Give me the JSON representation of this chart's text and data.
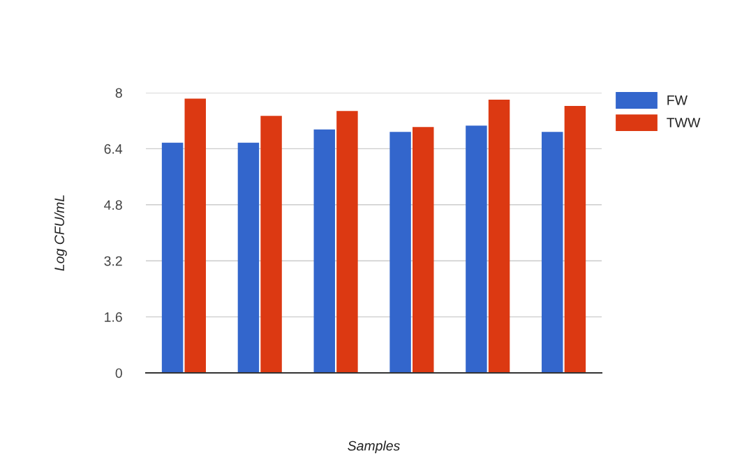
{
  "chart_data": {
    "type": "bar",
    "categories": [
      null,
      null,
      null,
      null,
      null,
      null
    ],
    "series": [
      {
        "name": "FW",
        "color": "#3366cc",
        "values": [
          6.57,
          6.57,
          6.95,
          6.88,
          7.06,
          6.88
        ]
      },
      {
        "name": "TWW",
        "color": "#dc3912",
        "values": [
          7.83,
          7.34,
          7.48,
          7.02,
          7.8,
          7.62
        ]
      }
    ],
    "xlabel": "Samples",
    "ylabel": "Log CFU/mL",
    "ylim": [
      0,
      8
    ],
    "yticks": [
      0,
      1.6,
      3.2,
      4.8,
      6.4,
      8
    ],
    "grid": "y",
    "legend": "top right",
    "tick_labels": "y"
  }
}
